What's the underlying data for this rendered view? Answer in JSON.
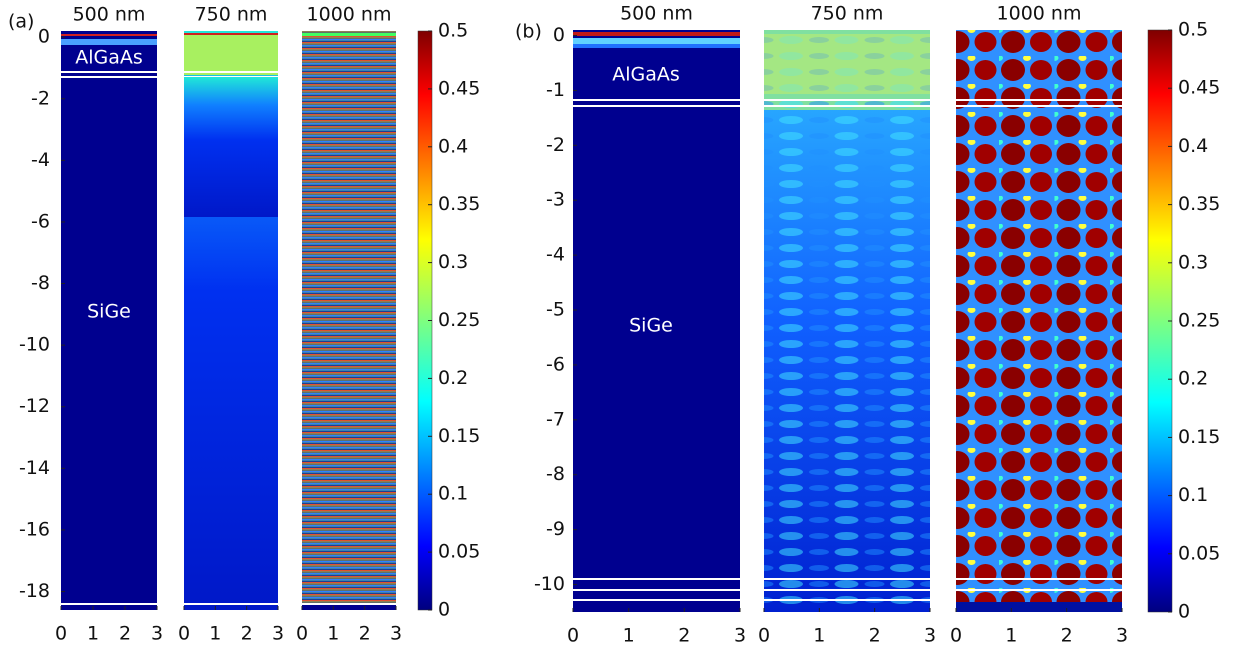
{
  "chart_data": [
    {
      "type": "heatmap",
      "panel_label": "(a)",
      "subplots": [
        {
          "title": "500 nm"
        },
        {
          "title": "750 nm"
        },
        {
          "title": "1000 nm"
        }
      ],
      "annotations": [
        "AlGaAs",
        "SiGe"
      ],
      "xlim": [
        0,
        3
      ],
      "xticks": [
        0,
        1,
        2,
        3
      ],
      "ylim": [
        -18.6,
        0.2
      ],
      "yticks": [
        0,
        -2,
        -4,
        -6,
        -8,
        -10,
        -12,
        -14,
        -16,
        -18
      ],
      "colorbar": {
        "lim": [
          0,
          0.5
        ],
        "ticks": [
          0,
          0.05,
          0.1,
          0.15,
          0.2,
          0.25,
          0.3,
          0.35,
          0.4,
          0.45,
          0.5
        ]
      }
    },
    {
      "type": "heatmap",
      "panel_label": "(b)",
      "subplots": [
        {
          "title": "500 nm"
        },
        {
          "title": "750 nm"
        },
        {
          "title": "1000 nm"
        }
      ],
      "annotations": [
        "AlGaAs",
        "SiGe"
      ],
      "xlim": [
        0,
        3
      ],
      "xticks": [
        0,
        1,
        2,
        3
      ],
      "ylim": [
        -10.5,
        0.1
      ],
      "yticks": [
        0,
        -1,
        -2,
        -3,
        -4,
        -5,
        -6,
        -7,
        -8,
        -9,
        -10
      ],
      "colorbar": {
        "lim": [
          0,
          0.5
        ],
        "ticks": [
          0,
          0.05,
          0.1,
          0.15,
          0.2,
          0.25,
          0.3,
          0.35,
          0.4,
          0.45,
          0.5
        ]
      }
    }
  ]
}
